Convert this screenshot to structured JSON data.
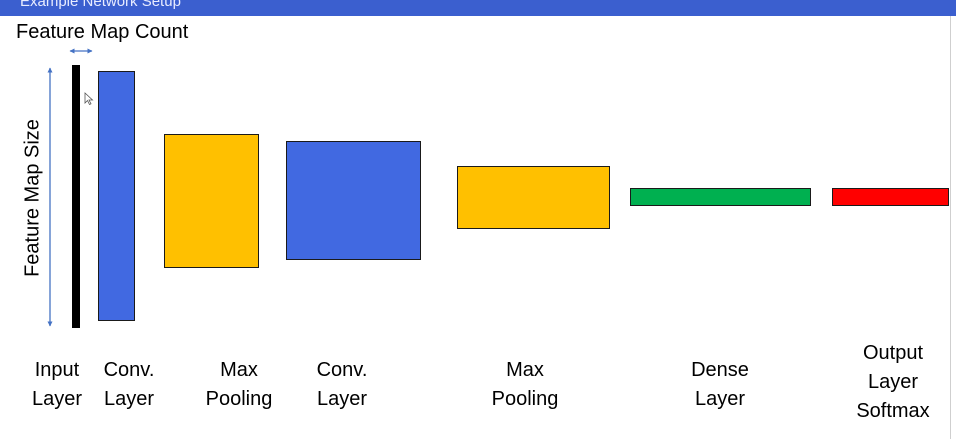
{
  "slide": {
    "title": "Example Network Setup",
    "feature_map_count_label": "Feature Map Count",
    "feature_map_size_label": "Feature Map Size"
  },
  "layers": [
    {
      "line1": "Input",
      "line2": "Layer",
      "line3": ""
    },
    {
      "line1": "Conv.",
      "line2": "Layer",
      "line3": ""
    },
    {
      "line1": "Max",
      "line2": "Pooling",
      "line3": ""
    },
    {
      "line1": "Conv.",
      "line2": "Layer",
      "line3": ""
    },
    {
      "line1": "Max",
      "line2": "Pooling",
      "line3": ""
    },
    {
      "line1": "Dense",
      "line2": "Layer",
      "line3": ""
    },
    {
      "line1": "Output",
      "line2": "Layer",
      "line3": "Softmax"
    }
  ],
  "colors": {
    "conv": "#4169e1",
    "pooling": "#ffc000",
    "dense": "#00b050",
    "output": "#ff0000",
    "input": "#000000",
    "title_bar": "#3b5fcf",
    "arrow": "#4472c4"
  }
}
